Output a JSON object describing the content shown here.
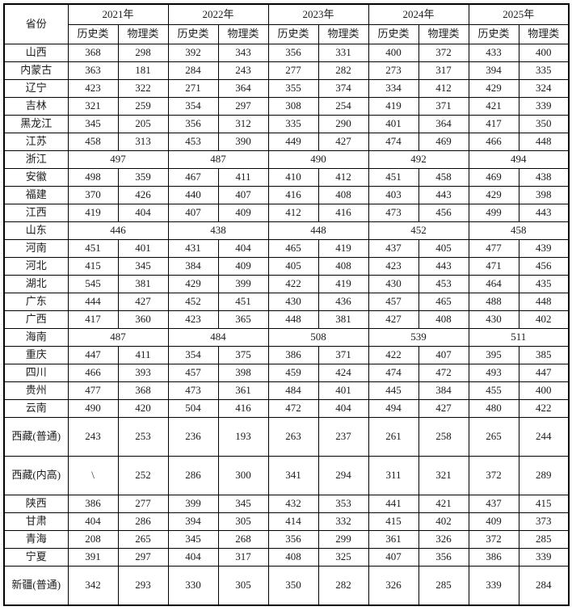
{
  "table": {
    "corner_header": "省份",
    "years": [
      "2021年",
      "2022年",
      "2023年",
      "2024年",
      "2025年"
    ],
    "subheaders": [
      "历史类",
      "物理类"
    ],
    "rows": [
      {
        "province": "山西",
        "merged": false,
        "tall": false,
        "values": [
          "368",
          "298",
          "392",
          "343",
          "356",
          "331",
          "400",
          "372",
          "433",
          "400"
        ]
      },
      {
        "province": "内蒙古",
        "merged": false,
        "tall": false,
        "values": [
          "363",
          "181",
          "284",
          "243",
          "277",
          "282",
          "273",
          "317",
          "394",
          "335"
        ]
      },
      {
        "province": "辽宁",
        "merged": false,
        "tall": false,
        "values": [
          "423",
          "322",
          "271",
          "364",
          "355",
          "374",
          "334",
          "412",
          "429",
          "324"
        ]
      },
      {
        "province": "吉林",
        "merged": false,
        "tall": false,
        "values": [
          "321",
          "259",
          "354",
          "297",
          "308",
          "254",
          "419",
          "371",
          "421",
          "339"
        ]
      },
      {
        "province": "黑龙江",
        "merged": false,
        "tall": false,
        "values": [
          "345",
          "205",
          "356",
          "312",
          "335",
          "290",
          "401",
          "364",
          "417",
          "350"
        ]
      },
      {
        "province": "江苏",
        "merged": false,
        "tall": false,
        "values": [
          "458",
          "313",
          "453",
          "390",
          "449",
          "427",
          "474",
          "469",
          "466",
          "448"
        ]
      },
      {
        "province": "浙江",
        "merged": true,
        "tall": false,
        "values": [
          "497",
          "487",
          "490",
          "492",
          "494"
        ]
      },
      {
        "province": "安徽",
        "merged": false,
        "tall": false,
        "values": [
          "498",
          "359",
          "467",
          "411",
          "410",
          "412",
          "451",
          "458",
          "469",
          "438"
        ]
      },
      {
        "province": "福建",
        "merged": false,
        "tall": false,
        "values": [
          "370",
          "426",
          "440",
          "407",
          "416",
          "408",
          "403",
          "443",
          "429",
          "398"
        ]
      },
      {
        "province": "江西",
        "merged": false,
        "tall": false,
        "values": [
          "419",
          "404",
          "407",
          "409",
          "412",
          "416",
          "473",
          "456",
          "499",
          "443"
        ]
      },
      {
        "province": "山东",
        "merged": true,
        "tall": false,
        "values": [
          "446",
          "438",
          "448",
          "452",
          "458"
        ]
      },
      {
        "province": "河南",
        "merged": false,
        "tall": false,
        "values": [
          "451",
          "401",
          "431",
          "404",
          "465",
          "419",
          "437",
          "405",
          "477",
          "439"
        ]
      },
      {
        "province": "河北",
        "merged": false,
        "tall": false,
        "values": [
          "415",
          "345",
          "384",
          "409",
          "405",
          "408",
          "423",
          "443",
          "471",
          "456"
        ]
      },
      {
        "province": "湖北",
        "merged": false,
        "tall": false,
        "values": [
          "545",
          "381",
          "429",
          "399",
          "422",
          "419",
          "430",
          "453",
          "464",
          "435"
        ]
      },
      {
        "province": "广东",
        "merged": false,
        "tall": false,
        "values": [
          "444",
          "427",
          "452",
          "451",
          "430",
          "436",
          "457",
          "465",
          "488",
          "448"
        ]
      },
      {
        "province": "广西",
        "merged": false,
        "tall": false,
        "values": [
          "417",
          "360",
          "423",
          "365",
          "448",
          "381",
          "427",
          "408",
          "430",
          "402"
        ]
      },
      {
        "province": "海南",
        "merged": true,
        "tall": false,
        "values": [
          "487",
          "484",
          "508",
          "539",
          "511"
        ]
      },
      {
        "province": "重庆",
        "merged": false,
        "tall": false,
        "values": [
          "447",
          "411",
          "354",
          "375",
          "386",
          "371",
          "422",
          "407",
          "395",
          "385"
        ]
      },
      {
        "province": "四川",
        "merged": false,
        "tall": false,
        "values": [
          "466",
          "393",
          "457",
          "398",
          "459",
          "424",
          "474",
          "472",
          "493",
          "447"
        ]
      },
      {
        "province": "贵州",
        "merged": false,
        "tall": false,
        "values": [
          "477",
          "368",
          "473",
          "361",
          "484",
          "401",
          "445",
          "384",
          "455",
          "400"
        ]
      },
      {
        "province": "云南",
        "merged": false,
        "tall": false,
        "values": [
          "490",
          "420",
          "504",
          "416",
          "472",
          "404",
          "494",
          "427",
          "480",
          "422"
        ]
      },
      {
        "province": "西藏(普通)",
        "merged": false,
        "tall": true,
        "values": [
          "243",
          "253",
          "236",
          "193",
          "263",
          "237",
          "261",
          "258",
          "265",
          "244"
        ]
      },
      {
        "province": "西藏(内高)",
        "merged": false,
        "tall": true,
        "values": [
          "\\",
          "252",
          "286",
          "300",
          "341",
          "294",
          "311",
          "321",
          "372",
          "289"
        ]
      },
      {
        "province": "陕西",
        "merged": false,
        "tall": false,
        "values": [
          "386",
          "277",
          "399",
          "345",
          "432",
          "353",
          "441",
          "421",
          "437",
          "415"
        ]
      },
      {
        "province": "甘肃",
        "merged": false,
        "tall": false,
        "values": [
          "404",
          "286",
          "394",
          "305",
          "414",
          "332",
          "415",
          "402",
          "409",
          "373"
        ]
      },
      {
        "province": "青海",
        "merged": false,
        "tall": false,
        "values": [
          "208",
          "265",
          "345",
          "268",
          "356",
          "299",
          "361",
          "326",
          "372",
          "285"
        ]
      },
      {
        "province": "宁夏",
        "merged": false,
        "tall": false,
        "values": [
          "391",
          "297",
          "404",
          "317",
          "408",
          "325",
          "407",
          "356",
          "386",
          "339"
        ]
      },
      {
        "province": "新疆(普通)",
        "merged": false,
        "tall": true,
        "values": [
          "342",
          "293",
          "330",
          "305",
          "350",
          "282",
          "326",
          "285",
          "339",
          "284"
        ]
      }
    ]
  },
  "colors": {
    "border": "#000000",
    "text": "#1c1c1c",
    "background": "#ffffff"
  }
}
